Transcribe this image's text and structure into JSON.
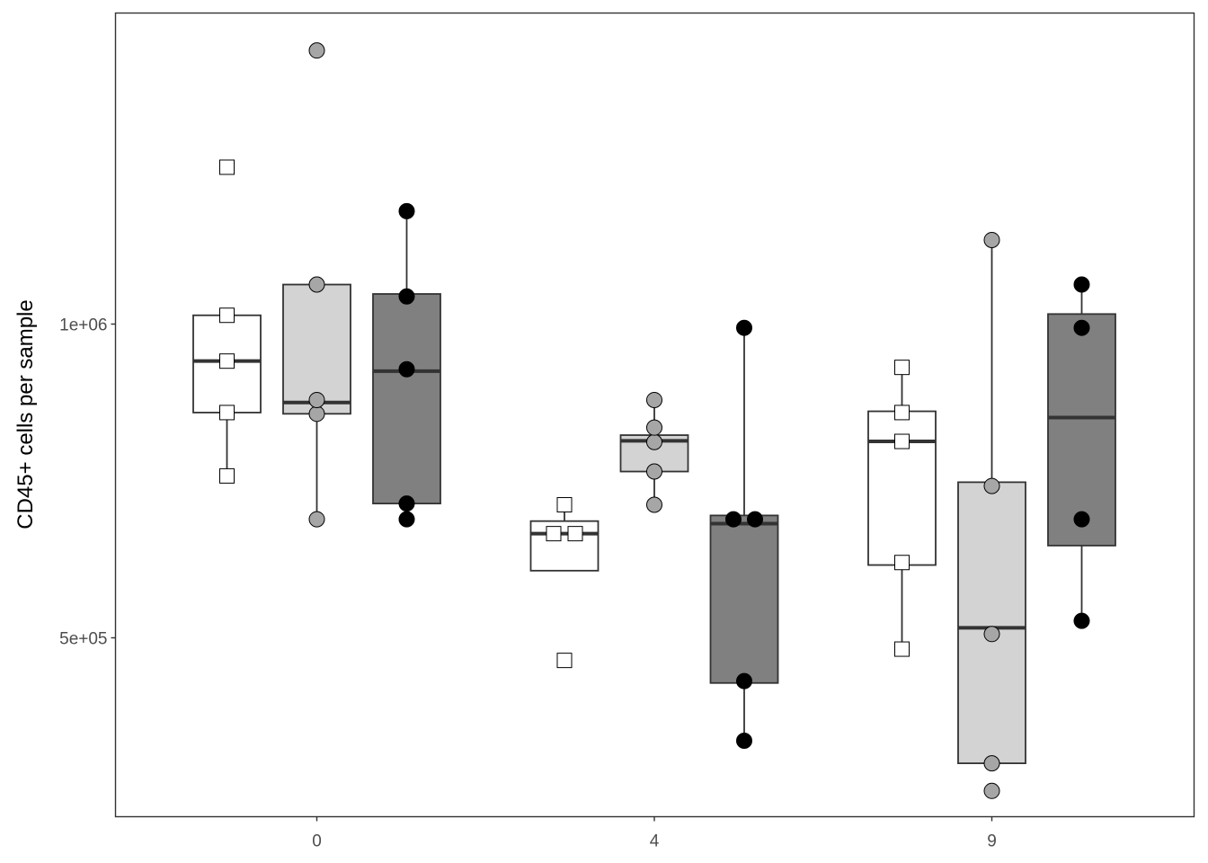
{
  "chart_data": {
    "type": "box",
    "title": "",
    "xlabel": "",
    "ylabel": "CD45+ cells per sample",
    "ylim": [
      200000,
      1475000
    ],
    "y_ticks": [
      {
        "value": 500000,
        "label": "5e+05"
      },
      {
        "value": 1000000,
        "label": "1e+06"
      }
    ],
    "categories": [
      "0",
      "4",
      "9"
    ],
    "grid": false,
    "legend": "none",
    "series": [
      {
        "fill": "#ffffff",
        "point_shape": "square",
        "point_color": "#ffffff",
        "groups": [
          {
            "category": "0",
            "q1": 859000,
            "median": 941000,
            "q3": 1014000,
            "whisker_low": 758000,
            "whisker_high": 1014000,
            "points": [
              758000,
              859000,
              941000,
              1014000,
              1250000
            ],
            "outliers": [
              1250000
            ]
          },
          {
            "category": "4",
            "q1": 607000,
            "median": 666000,
            "q3": 686000,
            "whisker_low": 607000,
            "whisker_high": 712000,
            "points": [
              464000,
              666000,
              666000,
              712000
            ],
            "outliers": [
              464000
            ]
          },
          {
            "category": "9",
            "q1": 616000,
            "median": 813000,
            "q3": 861000,
            "whisker_low": 482000,
            "whisker_high": 931000,
            "points": [
              482000,
              620000,
              813000,
              859000,
              931000
            ],
            "outliers": []
          }
        ]
      },
      {
        "fill": "#d3d3d3",
        "point_shape": "circle",
        "point_color": "#a6a6a6",
        "groups": [
          {
            "category": "0",
            "q1": 857000,
            "median": 875000,
            "q3": 1063000,
            "whisker_low": 689000,
            "whisker_high": 1063000,
            "points": [
              689000,
              857000,
              879000,
              1063000,
              1436000
            ],
            "outliers": [
              1436000
            ]
          },
          {
            "category": "4",
            "q1": 765000,
            "median": 814000,
            "q3": 823000,
            "whisker_low": 712000,
            "whisker_high": 879000,
            "points": [
              712000,
              765000,
              812000,
              835000,
              879000
            ],
            "outliers": []
          },
          {
            "category": "9",
            "q1": 300000,
            "median": 516000,
            "q3": 748000,
            "whisker_low": 300000,
            "whisker_high": 1134000,
            "points": [
              256000,
              300000,
              506000,
              742000,
              1134000
            ],
            "outliers": [
              256000
            ]
          }
        ]
      },
      {
        "fill": "#808080",
        "point_shape": "circle",
        "point_color": "#000000",
        "groups": [
          {
            "category": "0",
            "q1": 714000,
            "median": 925000,
            "q3": 1048000,
            "whisker_low": 714000,
            "whisker_high": 1180000,
            "points": [
              689000,
              714000,
              928000,
              1044000,
              1180000
            ],
            "outliers": [
              689000
            ]
          },
          {
            "category": "4",
            "q1": 428000,
            "median": 682000,
            "q3": 695000,
            "whisker_low": 336000,
            "whisker_high": 994000,
            "points": [
              336000,
              431000,
              689000,
              689000,
              994000
            ],
            "outliers": []
          },
          {
            "category": "9",
            "q1": 647000,
            "median": 851000,
            "q3": 1016000,
            "whisker_low": 527000,
            "whisker_high": 1063000,
            "points": [
              527000,
              689000,
              994000,
              1063000
            ],
            "outliers": []
          }
        ]
      }
    ]
  }
}
